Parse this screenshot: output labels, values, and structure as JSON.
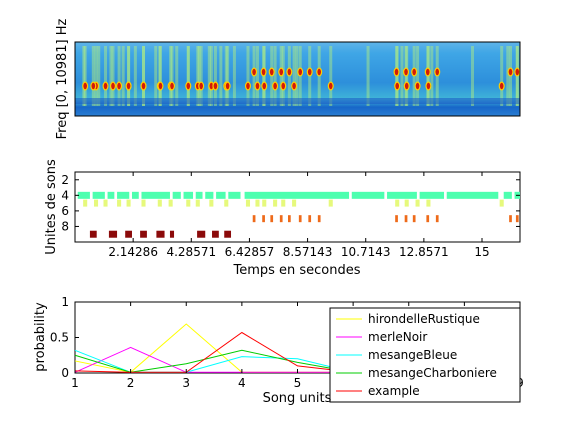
{
  "chart_data": [
    {
      "type": "heatmap",
      "ylabel": "Freq [0, 10981] Hz",
      "colormap": "jet",
      "bands": [
        {
          "label": "low-frequency background",
          "level": "high"
        },
        {
          "label": "calls",
          "level": "very-high"
        }
      ]
    },
    {
      "type": "scatter",
      "xlabel": "Temps en secondes",
      "ylabel": "Unites de sons",
      "xticks": [
        "2.14286",
        "4.28571",
        "6.42857",
        "8.57143",
        "10.7143",
        "12.8571",
        "15"
      ],
      "xlim": [
        0,
        16.4
      ],
      "yticks": [
        "2",
        "4",
        "6",
        "8"
      ],
      "ylim": [
        1,
        10
      ],
      "rows": [
        {
          "unit": 4,
          "color": "#4dffaf",
          "segments": [
            [
              0.1,
              0.55
            ],
            [
              0.65,
              1.1
            ],
            [
              1.2,
              1.45
            ],
            [
              1.55,
              2.0
            ],
            [
              2.1,
              2.35
            ],
            [
              2.45,
              3.5
            ],
            [
              3.6,
              3.9
            ],
            [
              4.0,
              4.35
            ],
            [
              4.45,
              4.7
            ],
            [
              4.8,
              5.1
            ],
            [
              5.2,
              5.55
            ],
            [
              5.65,
              6.1
            ],
            [
              6.25,
              10.1
            ],
            [
              10.2,
              11.4
            ],
            [
              11.5,
              12.6
            ],
            [
              12.7,
              13.6
            ],
            [
              13.7,
              15.6
            ],
            [
              15.8,
              16.1
            ],
            [
              16.2,
              16.4
            ]
          ]
        },
        {
          "unit": 5,
          "color": "#e6f97c",
          "segments": [
            [
              0.3,
              0.45
            ],
            [
              0.7,
              0.85
            ],
            [
              1.05,
              1.2
            ],
            [
              1.55,
              1.7
            ],
            [
              1.9,
              2.05
            ],
            [
              2.45,
              2.6
            ],
            [
              3.05,
              3.2
            ],
            [
              3.45,
              3.6
            ],
            [
              4.1,
              4.25
            ],
            [
              4.45,
              4.6
            ],
            [
              4.95,
              5.1
            ],
            [
              5.5,
              5.65
            ],
            [
              6.3,
              6.45
            ],
            [
              6.65,
              6.8
            ],
            [
              6.9,
              7.05
            ],
            [
              7.3,
              7.45
            ],
            [
              7.6,
              7.75
            ],
            [
              8.0,
              8.15
            ],
            [
              9.35,
              9.5
            ],
            [
              11.8,
              11.95
            ],
            [
              12.15,
              12.3
            ],
            [
              12.55,
              12.7
            ],
            [
              12.95,
              13.1
            ],
            [
              15.65,
              15.8
            ]
          ]
        },
        {
          "unit": 7,
          "color": "#ee6a1a",
          "segments": [
            [
              6.55,
              6.65
            ],
            [
              6.9,
              7.0
            ],
            [
              7.2,
              7.3
            ],
            [
              7.55,
              7.65
            ],
            [
              7.85,
              7.95
            ],
            [
              8.25,
              8.35
            ],
            [
              8.6,
              8.7
            ],
            [
              8.95,
              9.05
            ],
            [
              11.8,
              11.9
            ],
            [
              12.15,
              12.25
            ],
            [
              12.45,
              12.55
            ],
            [
              12.95,
              13.05
            ],
            [
              13.3,
              13.4
            ],
            [
              16.0,
              16.1
            ],
            [
              16.25,
              16.35
            ]
          ]
        },
        {
          "unit": 9,
          "color": "#8b0a0a",
          "segments": [
            [
              0.55,
              0.8
            ],
            [
              1.25,
              1.55
            ],
            [
              1.85,
              2.1
            ],
            [
              2.4,
              2.65
            ],
            [
              3.0,
              3.3
            ],
            [
              3.5,
              3.65
            ],
            [
              4.5,
              4.8
            ],
            [
              5.05,
              5.3
            ],
            [
              5.5,
              5.75
            ]
          ]
        }
      ]
    },
    {
      "type": "line",
      "xlabel": "Song units",
      "ylabel": "probability",
      "x": [
        1,
        2,
        3,
        4,
        5,
        6,
        7,
        8,
        9
      ],
      "xlim": [
        1,
        9
      ],
      "ylim": [
        0,
        1
      ],
      "xticks": [
        "1",
        "2",
        "3",
        "4",
        "5",
        "6",
        "7",
        "8",
        "9"
      ],
      "yticks": [
        "0",
        "0.5",
        "1"
      ],
      "legend_position": "top-right",
      "series": [
        {
          "name": "hirondelleRustique",
          "color": "#ffff00",
          "values": [
            0.17,
            0.01,
            0.69,
            0.01,
            0.01,
            0.01,
            0.01,
            0.01,
            0.15
          ]
        },
        {
          "name": "merleNoir",
          "color": "#ff00ff",
          "values": [
            0.01,
            0.36,
            0.01,
            0.01,
            0.01,
            0.01,
            0.01,
            0.01,
            0.14
          ]
        },
        {
          "name": "mesangeBleue",
          "color": "#00ffff",
          "values": [
            0.32,
            0.01,
            0.01,
            0.23,
            0.2,
            0.01,
            0.01,
            0.01,
            0.1
          ]
        },
        {
          "name": "mesangeCharboniere",
          "color": "#00cc00",
          "values": [
            0.25,
            0.01,
            0.13,
            0.32,
            0.15,
            0.01,
            0.01,
            0.01,
            0.12
          ]
        },
        {
          "name": "example",
          "color": "#ff0000",
          "values": [
            0.03,
            0.01,
            0.01,
            0.57,
            0.1,
            0.01,
            0.01,
            0.01,
            0.01
          ]
        }
      ]
    }
  ]
}
